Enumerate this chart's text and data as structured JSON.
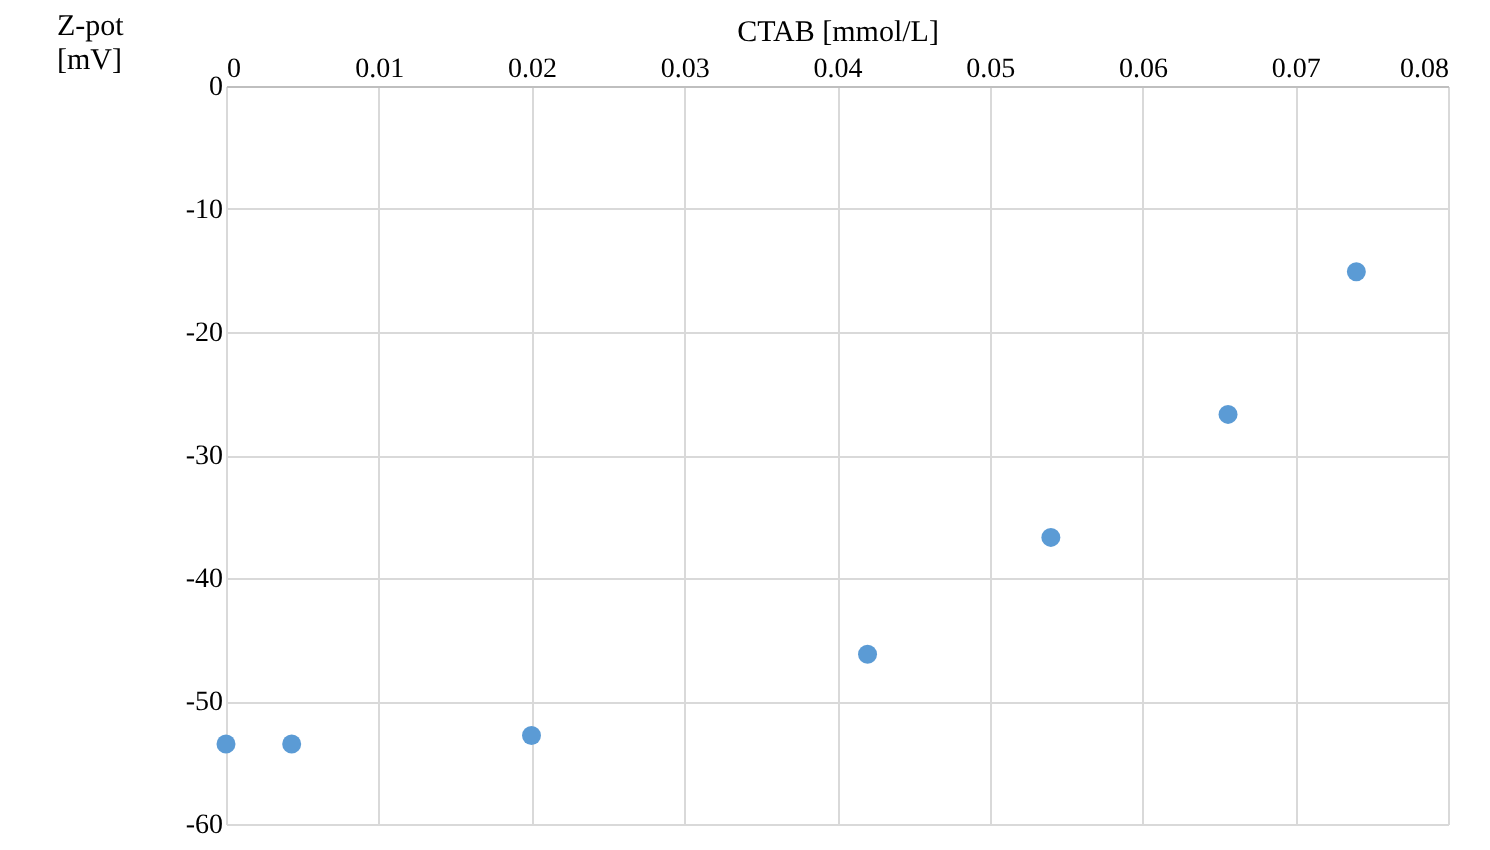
{
  "chart_data": {
    "type": "scatter",
    "xlabel": "CTAB [mmol/L]",
    "ylabel": "Z-pot [mV]",
    "x": [
      0,
      0.0043,
      0.02,
      0.042,
      0.054,
      0.0656,
      0.074
    ],
    "series": [
      {
        "color": "#5b9bd5",
        "values": [
          -53.5,
          -53.5,
          -52.8,
          -46.2,
          -36.7,
          -26.7,
          -15.1
        ]
      }
    ],
    "xlim": [
      0,
      0.08
    ],
    "xticks": [
      0,
      0.01,
      0.02,
      0.03,
      0.04,
      0.05,
      0.06,
      0.07,
      0.08
    ],
    "ylim": [
      -60,
      0
    ],
    "yticks": [
      -60,
      -50,
      -40,
      -30,
      -20,
      -10,
      0
    ],
    "grid": true,
    "marker": "circle"
  }
}
